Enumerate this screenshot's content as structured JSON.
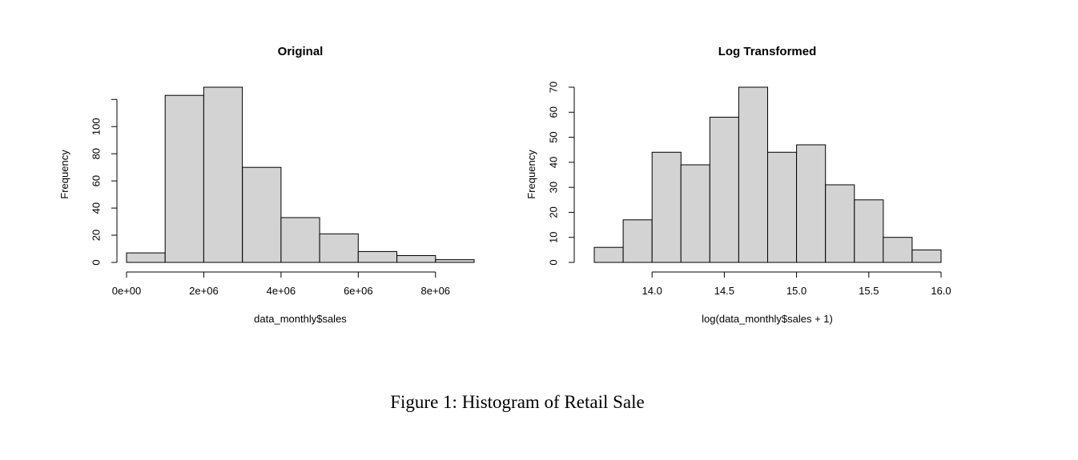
{
  "figure": {
    "caption": "Figure 1: Histogram of Retail Sale"
  },
  "chart_data": [
    {
      "type": "bar",
      "title": "Original",
      "xlabel": "data_monthly$sales",
      "ylabel": "Frequency",
      "bins": [
        {
          "x0": 0,
          "x1": 1000000,
          "count": 7
        },
        {
          "x0": 1000000,
          "x1": 2000000,
          "count": 123
        },
        {
          "x0": 2000000,
          "x1": 3000000,
          "count": 129
        },
        {
          "x0": 3000000,
          "x1": 4000000,
          "count": 70
        },
        {
          "x0": 4000000,
          "x1": 5000000,
          "count": 33
        },
        {
          "x0": 5000000,
          "x1": 6000000,
          "count": 21
        },
        {
          "x0": 6000000,
          "x1": 7000000,
          "count": 8
        },
        {
          "x0": 7000000,
          "x1": 8000000,
          "count": 5
        },
        {
          "x0": 8000000,
          "x1": 9000000,
          "count": 2
        }
      ],
      "xlim": [
        0,
        9000000
      ],
      "ylim": [
        0,
        129
      ],
      "xticks": [
        {
          "value": 0,
          "label": "0e+00"
        },
        {
          "value": 2000000,
          "label": "2e+06"
        },
        {
          "value": 4000000,
          "label": "4e+06"
        },
        {
          "value": 6000000,
          "label": "6e+06"
        },
        {
          "value": 8000000,
          "label": "8e+06"
        }
      ],
      "yticks": [
        {
          "value": 0,
          "label": "0"
        },
        {
          "value": 20,
          "label": "20"
        },
        {
          "value": 40,
          "label": "40"
        },
        {
          "value": 60,
          "label": "60"
        },
        {
          "value": 80,
          "label": "80"
        },
        {
          "value": 100,
          "label": "100"
        },
        {
          "value": 120,
          "label": ""
        }
      ],
      "grid": false
    },
    {
      "type": "bar",
      "title": "Log Transformed",
      "xlabel": "log(data_monthly$sales + 1)",
      "ylabel": "Frequency",
      "bins": [
        {
          "x0": 13.6,
          "x1": 13.8,
          "count": 6
        },
        {
          "x0": 13.8,
          "x1": 14.0,
          "count": 17
        },
        {
          "x0": 14.0,
          "x1": 14.2,
          "count": 44
        },
        {
          "x0": 14.2,
          "x1": 14.4,
          "count": 39
        },
        {
          "x0": 14.4,
          "x1": 14.6,
          "count": 58
        },
        {
          "x0": 14.6,
          "x1": 14.8,
          "count": 70
        },
        {
          "x0": 14.8,
          "x1": 15.0,
          "count": 44
        },
        {
          "x0": 15.0,
          "x1": 15.2,
          "count": 47
        },
        {
          "x0": 15.2,
          "x1": 15.4,
          "count": 31
        },
        {
          "x0": 15.4,
          "x1": 15.6,
          "count": 25
        },
        {
          "x0": 15.6,
          "x1": 15.8,
          "count": 10
        },
        {
          "x0": 15.8,
          "x1": 16.0,
          "count": 5
        }
      ],
      "xlim": [
        13.6,
        16.0
      ],
      "ylim": [
        0,
        70
      ],
      "xticks": [
        {
          "value": 14.0,
          "label": "14.0"
        },
        {
          "value": 14.5,
          "label": "14.5"
        },
        {
          "value": 15.0,
          "label": "15.0"
        },
        {
          "value": 15.5,
          "label": "15.5"
        },
        {
          "value": 16.0,
          "label": "16.0"
        }
      ],
      "yticks": [
        {
          "value": 0,
          "label": "0"
        },
        {
          "value": 10,
          "label": "10"
        },
        {
          "value": 20,
          "label": "20"
        },
        {
          "value": 30,
          "label": "30"
        },
        {
          "value": 40,
          "label": "40"
        },
        {
          "value": 50,
          "label": "50"
        },
        {
          "value": 60,
          "label": "60"
        },
        {
          "value": 70,
          "label": "70"
        }
      ],
      "grid": false
    }
  ]
}
